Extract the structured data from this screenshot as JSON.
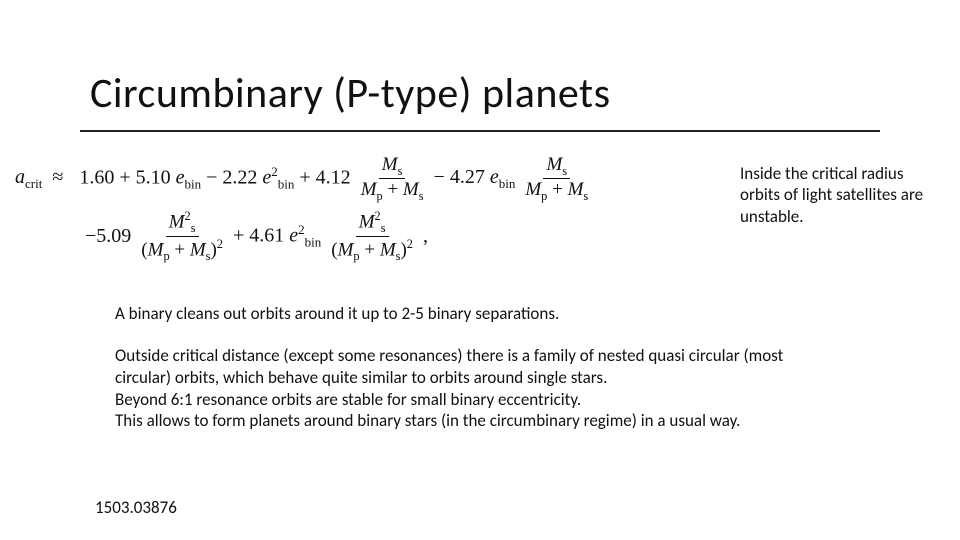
{
  "title": "Circumbinary (P-type) planets",
  "side_note": "Inside the critical radius orbits of light satellites are unstable.",
  "body1": "A binary cleans out orbits around it up to 2-5 binary separations.",
  "body2": "Outside critical distance (except some resonances) there is a family of nested quasi circular (most circular) orbits, which behave quite similar to orbits around single stars.\nBeyond 6:1 resonance orbits are stable for small binary eccentricity.\nThis allows to form planets around binary stars (in the circumbinary regime) in a usual way.",
  "reference": "1503.03876",
  "formula": {
    "lhs": "a_crit ≈",
    "terms": [
      "1.60",
      "+ 5.10 e_bin",
      "− 2.22 e_bin^2",
      "+ 4.12 M_s/(M_p+M_s)",
      "− 4.27 e_bin M_s/(M_p+M_s)",
      "− 5.09 M_s^2/(M_p+M_s)^2",
      "+ 4.61 e_bin^2 M_s^2/(M_p+M_s)^2"
    ]
  },
  "colors": {
    "text": "#111111",
    "background": "#ffffff",
    "rule": "#222222"
  },
  "fonts": {
    "title_size_pt": 42,
    "body_size_pt": 17,
    "formula_family": "Cambria Math / Times"
  }
}
